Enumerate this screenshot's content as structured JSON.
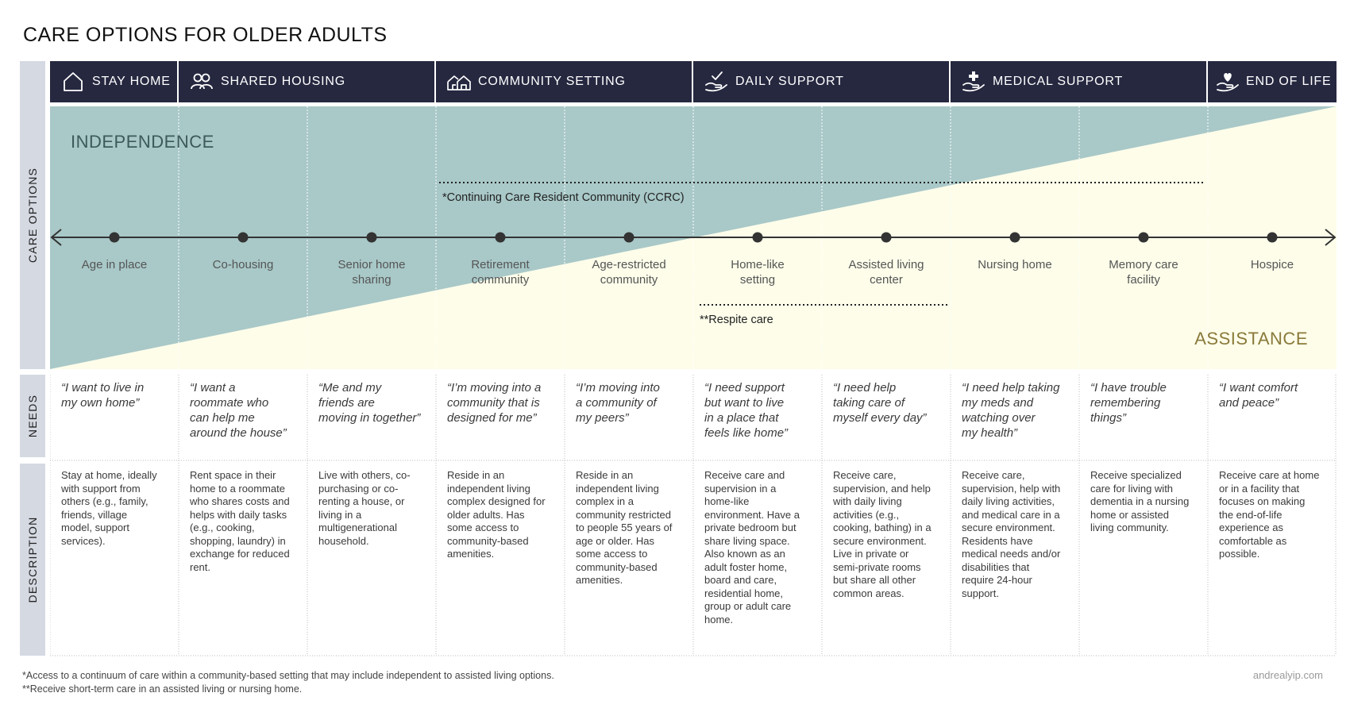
{
  "title": "CARE OPTIONS FOR OLDER ADULTS",
  "side_labels": {
    "care_options": "CARE OPTIONS",
    "needs": "NEEDS",
    "description": "DESCRIPTION"
  },
  "categories": [
    {
      "label": "STAY HOME",
      "icon": "house-icon"
    },
    {
      "label": "SHARED HOUSING",
      "icon": "people-icon"
    },
    {
      "label": "COMMUNITY SETTING",
      "icon": "houses-icon"
    },
    {
      "label": "DAILY SUPPORT",
      "icon": "hand-check-icon"
    },
    {
      "label": "MEDICAL SUPPORT",
      "icon": "hand-cross-icon"
    },
    {
      "label": "END OF LIFE",
      "icon": "hand-heart-icon"
    }
  ],
  "gradient": {
    "top_label": "INDEPENDENCE",
    "bottom_label": "ASSISTANCE"
  },
  "ccrc_label": "*Continuing Care Resident Community (CCRC)",
  "respite_label": "**Respite care",
  "options": [
    {
      "name": [
        "Age in place"
      ],
      "need": [
        "“I want to live in",
        "my own home”"
      ],
      "desc": [
        "Stay at home, ideally",
        "with support from",
        "others (e.g., family,",
        "friends, village",
        "model, support",
        "services)."
      ]
    },
    {
      "name": [
        "Co-housing"
      ],
      "need": [
        "“I want a",
        "roommate who",
        "can help me",
        "around the house”"
      ],
      "desc": [
        "Rent space in their",
        "home to a roommate",
        "who shares costs and",
        "helps with daily tasks",
        "(e.g., cooking,",
        "shopping, laundry) in",
        "exchange for reduced",
        "rent."
      ]
    },
    {
      "name": [
        "Senior home",
        "sharing"
      ],
      "need": [
        "“Me and my",
        "friends are",
        "moving in together”"
      ],
      "desc": [
        "Live with others, co-",
        "purchasing or co-",
        "renting a house, or",
        "living in a",
        "multigenerational",
        "household."
      ]
    },
    {
      "name": [
        "Retirement",
        "community"
      ],
      "need": [
        "“I’m moving into a",
        "community that is",
        "designed for me”"
      ],
      "desc": [
        "Reside in an",
        "independent living",
        "complex designed for",
        "older adults. Has",
        "some access to",
        "community-based",
        "amenities."
      ]
    },
    {
      "name": [
        "Age-restricted",
        "community"
      ],
      "need": [
        "“I’m moving into",
        "a community of",
        "my peers”"
      ],
      "desc": [
        "Reside in an",
        "independent living",
        "complex in a",
        "community restricted",
        "to people 55 years of",
        "age or older. Has",
        "some access to",
        "community-based",
        "amenities."
      ]
    },
    {
      "name": [
        "Home-like",
        "setting"
      ],
      "need": [
        "“I need support",
        "but want to live",
        "in a place that",
        "feels like home”"
      ],
      "desc": [
        "Receive care and",
        "supervision in a",
        "home-like",
        "environment. Have a",
        "private bedroom but",
        "share living space.",
        "Also known as an",
        "adult foster home,",
        "board and care,",
        "residential home,",
        "group or adult care",
        "home."
      ]
    },
    {
      "name": [
        "Assisted living",
        "center"
      ],
      "need": [
        "“I need help",
        "taking care of",
        "myself every day”"
      ],
      "desc": [
        "Receive care,",
        "supervision, and help",
        "with daily living",
        "activities (e.g.,",
        "cooking, bathing) in a",
        "secure environment.",
        "Live in private or",
        "semi-private rooms",
        "but share all other",
        "common areas."
      ]
    },
    {
      "name": [
        "Nursing home"
      ],
      "need": [
        "“I need help taking",
        "my meds and",
        "watching over",
        "my health”"
      ],
      "desc": [
        "Receive care,",
        "supervision, help with",
        "daily living activities,",
        "and medical care in a",
        "secure environment.",
        "Residents have",
        "medical needs and/or",
        "disabilities that",
        "require 24-hour",
        "support."
      ]
    },
    {
      "name": [
        "Memory care",
        "facility"
      ],
      "need": [
        "“I have trouble",
        "remembering",
        "things”"
      ],
      "desc": [
        "Receive specialized",
        "care for living with",
        "dementia in a nursing",
        "home or assisted",
        "living community."
      ]
    },
    {
      "name": [
        "Hospice"
      ],
      "need": [
        "“I want comfort",
        "and peace”"
      ],
      "desc": [
        "Receive care at home",
        "or in a facility that",
        "focuses on making",
        "the end-of-life",
        "experience as",
        "comfortable as",
        "possible."
      ]
    }
  ],
  "footnotes": [
    "*Access to a continuum of care within a community-based setting that may include independent to assisted living options.",
    "**Receive short-term care in an assisted living or nursing home."
  ],
  "credit": "andrealyip.com",
  "colors": {
    "header": "#262840",
    "independence": "#a9c8c8",
    "assistance": "#fdfdea",
    "side": "#d5d9e2"
  }
}
